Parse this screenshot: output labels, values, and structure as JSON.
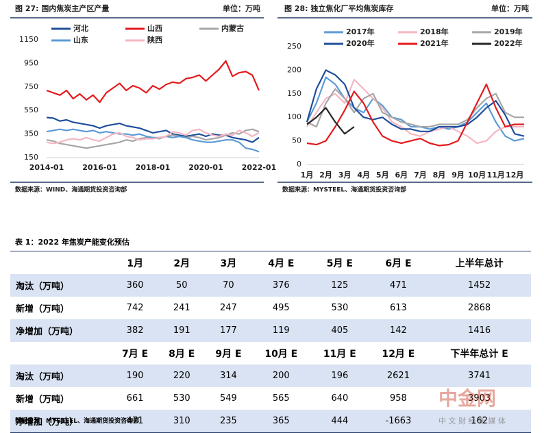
{
  "chart_data": [
    {
      "type": "line",
      "title": "图 27:  国内焦炭主产区产量",
      "unit": "单位：万吨",
      "source": "数据来源：WIND、海通期货投资咨询部",
      "x": [
        "2014-01",
        "2014-04",
        "2014-07",
        "2014-10",
        "2015-01",
        "2015-04",
        "2015-07",
        "2015-10",
        "2016-01",
        "2016-04",
        "2016-07",
        "2016-10",
        "2017-01",
        "2017-04",
        "2017-07",
        "2017-10",
        "2018-01",
        "2018-04",
        "2018-07",
        "2018-10",
        "2019-01",
        "2019-04",
        "2019-07",
        "2019-10",
        "2020-01",
        "2020-04",
        "2020-07",
        "2020-10",
        "2021-01",
        "2021-04",
        "2021-07",
        "2021-10",
        "2022-01"
      ],
      "xticks": [
        "2014-01",
        "2016-01",
        "2018-01",
        "2020-01",
        "2022-01"
      ],
      "ylim": [
        150,
        1150
      ],
      "yticks": [
        150,
        350,
        550,
        750,
        950,
        1150
      ],
      "series": [
        {
          "name": "河北",
          "color": "#1f4e9c",
          "values": [
            490,
            485,
            460,
            470,
            450,
            440,
            430,
            420,
            400,
            420,
            430,
            440,
            420,
            410,
            400,
            380,
            360,
            370,
            380,
            350,
            340,
            330,
            340,
            350,
            330,
            350,
            340,
            340,
            320,
            310,
            300,
            280,
            320
          ]
        },
        {
          "name": "山西",
          "color": "#e31a1c",
          "values": [
            720,
            700,
            680,
            720,
            650,
            690,
            640,
            680,
            620,
            700,
            740,
            780,
            720,
            760,
            740,
            700,
            760,
            730,
            770,
            790,
            780,
            820,
            830,
            850,
            800,
            850,
            900,
            970,
            840,
            870,
            880,
            850,
            720
          ]
        },
        {
          "name": "内蒙古",
          "color": "#a6a6a6",
          "values": [
            300,
            290,
            270,
            260,
            250,
            240,
            230,
            240,
            250,
            260,
            270,
            280,
            300,
            290,
            310,
            320,
            320,
            310,
            330,
            340,
            330,
            320,
            330,
            320,
            300,
            310,
            320,
            340,
            360,
            350,
            380,
            390,
            370
          ]
        },
        {
          "name": "山东",
          "color": "#5b9bd5",
          "values": [
            370,
            380,
            390,
            380,
            390,
            380,
            370,
            380,
            360,
            370,
            360,
            350,
            350,
            340,
            350,
            330,
            320,
            320,
            330,
            320,
            330,
            320,
            300,
            290,
            280,
            280,
            290,
            300,
            300,
            280,
            230,
            220,
            200
          ]
        },
        {
          "name": "陕西",
          "color": "#f4b6c2",
          "values": [
            280,
            270,
            280,
            300,
            310,
            300,
            320,
            300,
            290,
            320,
            350,
            360,
            330,
            320,
            300,
            310,
            310,
            320,
            330,
            370,
            360,
            340,
            380,
            390,
            360,
            340,
            330,
            350,
            340,
            380,
            360,
            330,
            360
          ]
        }
      ]
    },
    {
      "type": "line",
      "title": "图 28:  独立焦化厂平均焦炭库存",
      "unit": "单位：万吨",
      "source": "数据来源：MYSTEEL、海通期货投资咨询部",
      "categories": [
        "1月",
        null,
        "2月",
        null,
        "3月",
        null,
        "4月",
        null,
        "5月",
        null,
        "6月",
        null,
        "7月",
        null,
        "8月",
        null,
        "9月",
        null,
        "10月",
        null,
        "11月",
        null,
        "12月",
        null
      ],
      "ylim": [
        0,
        250
      ],
      "yticks": [
        0,
        50,
        100,
        150,
        200,
        250
      ],
      "series": [
        {
          "name": "2017年",
          "color": "#5b9bd5",
          "values": [
            90,
            130,
            185,
            170,
            140,
            120,
            110,
            140,
            125,
            100,
            95,
            80,
            80,
            75,
            80,
            75,
            80,
            90,
            110,
            130,
            90,
            60,
            50,
            55
          ]
        },
        {
          "name": "2018年",
          "color": "#f4b6c2",
          "values": [
            80,
            110,
            140,
            150,
            130,
            180,
            160,
            140,
            120,
            90,
            80,
            65,
            60,
            70,
            75,
            80,
            70,
            60,
            45,
            50,
            70,
            80,
            80,
            80
          ]
        },
        {
          "name": "2019年",
          "color": "#a6a6a6",
          "values": [
            90,
            80,
            130,
            160,
            140,
            110,
            140,
            150,
            110,
            100,
            90,
            85,
            80,
            80,
            85,
            85,
            85,
            95,
            120,
            140,
            150,
            110,
            100,
            100
          ]
        },
        {
          "name": "2020年",
          "color": "#1f4e9c",
          "values": [
            90,
            160,
            200,
            190,
            170,
            120,
            100,
            95,
            100,
            85,
            75,
            75,
            70,
            70,
            80,
            80,
            80,
            85,
            100,
            120,
            135,
            105,
            65,
            60
          ]
        },
        {
          "name": "2021年",
          "color": "#e31a1c",
          "values": [
            45,
            42,
            50,
            80,
            115,
            155,
            130,
            90,
            60,
            50,
            45,
            50,
            55,
            45,
            40,
            42,
            50,
            90,
            130,
            170,
            120,
            80,
            85,
            85
          ]
        },
        {
          "name": "2022年",
          "color": "#262626",
          "values": [
            85,
            100,
            120,
            90,
            65,
            80,
            null,
            null,
            null,
            null,
            null,
            null,
            null,
            null,
            null,
            null,
            null,
            null,
            null,
            null,
            null,
            null,
            null,
            null
          ]
        }
      ]
    }
  ],
  "table": {
    "title": "表 1：2022 年焦炭产能变化预估",
    "source": "数据来源：MYSTEEL、海通期货投资咨询部",
    "rows": [
      [
        null,
        "1月",
        "2月",
        "3月",
        "4月 E",
        "5月 E",
        "6月 E",
        "上半年总计"
      ],
      [
        "淘汰（万吨）",
        360,
        50,
        70,
        376,
        125,
        471,
        1452
      ],
      [
        "新增（万吨）",
        742,
        241,
        247,
        495,
        530,
        613,
        2868
      ],
      [
        "净增加（万吨）",
        382,
        191,
        177,
        119,
        405,
        142,
        1416
      ],
      [
        null,
        "7月 E",
        "8月 E",
        "9月 E",
        "10月 E",
        "11月 E",
        "12月 E",
        "下半年总计 E"
      ],
      [
        "淘汰（万吨）",
        190,
        220,
        314,
        200,
        196,
        2621,
        3741
      ],
      [
        "新增（万吨）",
        661,
        530,
        549,
        565,
        640,
        958,
        3903
      ],
      [
        "净增加（万吨）",
        471,
        310,
        235,
        365,
        444,
        -1663,
        162
      ]
    ]
  },
  "watermark": {
    "brand": "中金网",
    "tagline": "中 文 财 经 新 媒 体"
  }
}
